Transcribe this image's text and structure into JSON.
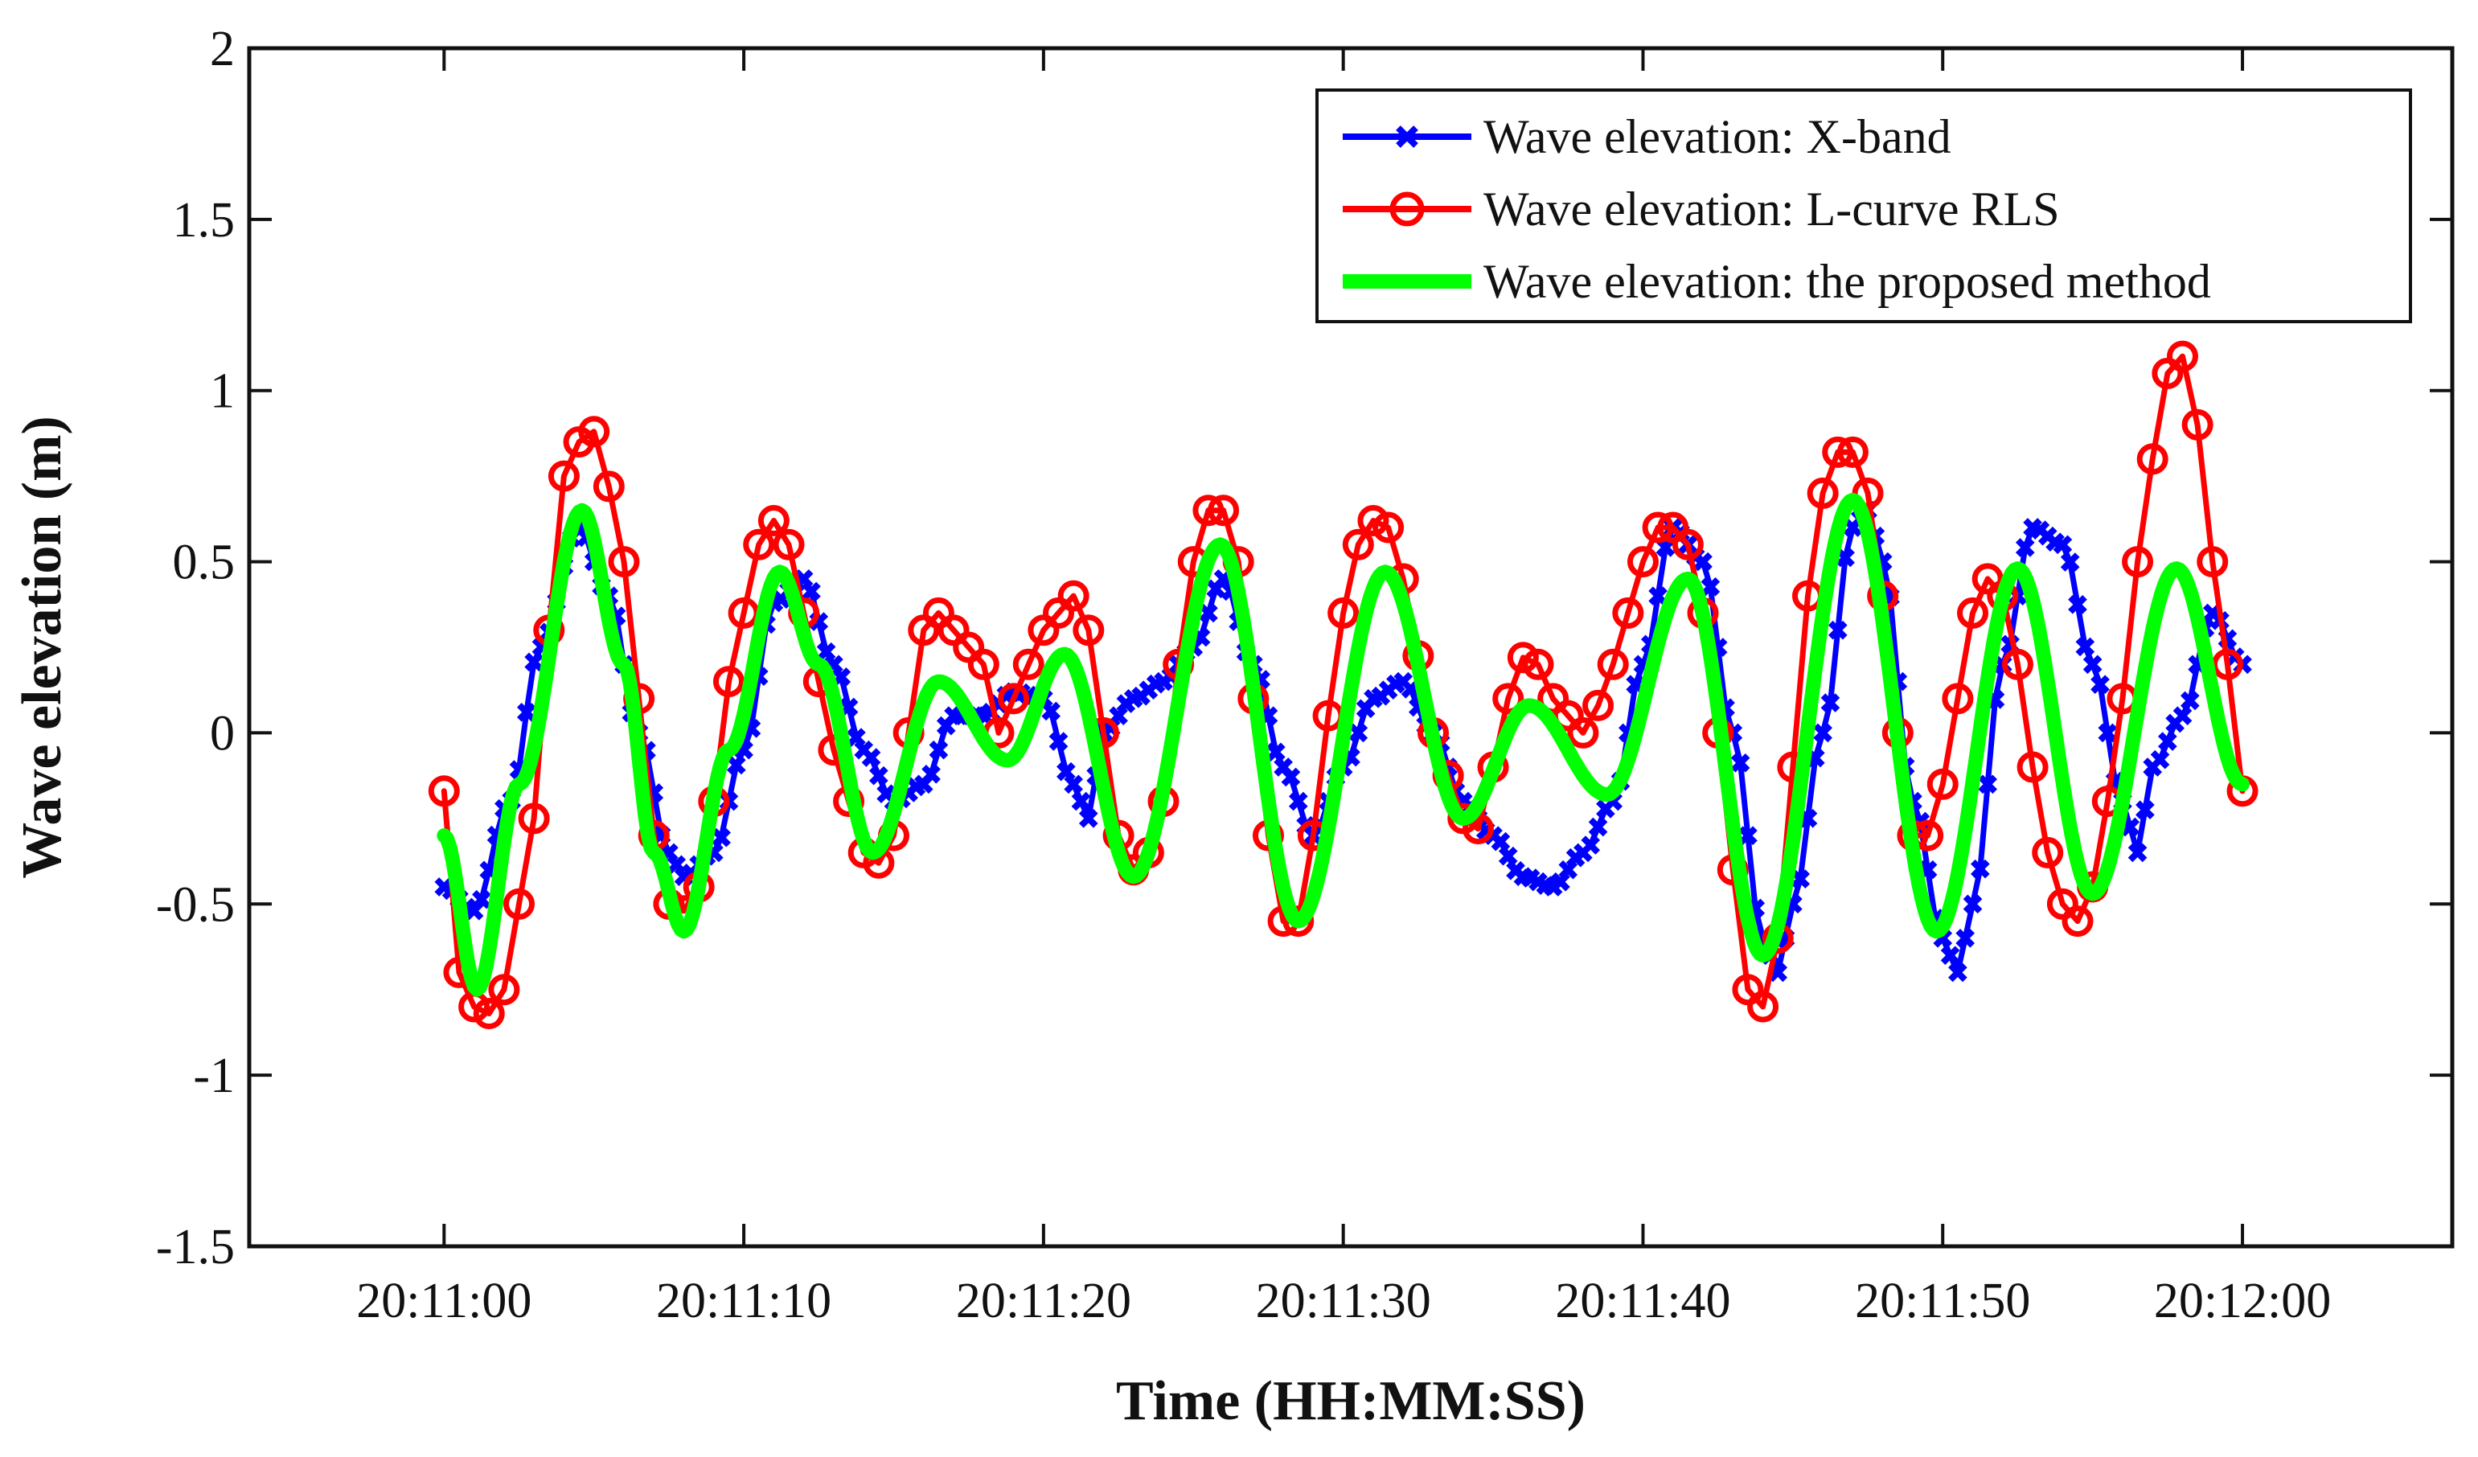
{
  "chart_data": {
    "type": "line",
    "title": "",
    "xlabel": "Time (HH:MM:SS)",
    "ylabel": "Wave elevation (m)",
    "x_unit": "seconds after 20:11:00",
    "xlim": [
      -6.5,
      67
    ],
    "ylim": [
      -1.5,
      2
    ],
    "xticks": [
      {
        "value": 0,
        "label": "20:11:00"
      },
      {
        "value": 10,
        "label": "20:11:10"
      },
      {
        "value": 20,
        "label": "20:11:20"
      },
      {
        "value": 30,
        "label": "20:11:30"
      },
      {
        "value": 40,
        "label": "20:11:40"
      },
      {
        "value": 50,
        "label": "20:11:50"
      },
      {
        "value": 60,
        "label": "20:12:00"
      }
    ],
    "yticks": [
      {
        "value": 2,
        "label": "2"
      },
      {
        "value": 1.5,
        "label": "1.5"
      },
      {
        "value": 1,
        "label": "1"
      },
      {
        "value": 0.5,
        "label": "0.5"
      },
      {
        "value": 0,
        "label": "0"
      },
      {
        "value": -0.5,
        "label": "-0.5"
      },
      {
        "value": -1,
        "label": "-1"
      },
      {
        "value": -1.5,
        "label": "-1.5"
      }
    ],
    "grid": false,
    "legend_position": "top-right",
    "series": [
      {
        "name": "Wave elevation: X-band",
        "color": "#0000FF",
        "marker": "x",
        "keypoints": [
          [
            0,
            -0.45
          ],
          [
            1,
            -0.52
          ],
          [
            2.2,
            -0.2
          ],
          [
            3.2,
            0.25
          ],
          [
            4.5,
            0.6
          ],
          [
            5.5,
            0.4
          ],
          [
            6.5,
            0.0
          ],
          [
            7.5,
            -0.35
          ],
          [
            8,
            -0.42
          ],
          [
            9,
            -0.35
          ],
          [
            10,
            -0.05
          ],
          [
            11,
            0.38
          ],
          [
            12,
            0.45
          ],
          [
            13,
            0.2
          ],
          [
            14,
            -0.05
          ],
          [
            15,
            -0.2
          ],
          [
            16,
            -0.15
          ],
          [
            17,
            0.05
          ],
          [
            18,
            0.05
          ],
          [
            19,
            0.12
          ],
          [
            20,
            0.1
          ],
          [
            21,
            -0.15
          ],
          [
            21.5,
            -0.25
          ],
          [
            22,
            0.0
          ],
          [
            23,
            0.1
          ],
          [
            24,
            0.15
          ],
          [
            25,
            0.25
          ],
          [
            26,
            0.45
          ],
          [
            27,
            0.2
          ],
          [
            28,
            -0.1
          ],
          [
            29,
            -0.3
          ],
          [
            30,
            -0.1
          ],
          [
            31,
            0.1
          ],
          [
            32,
            0.15
          ],
          [
            33,
            0.0
          ],
          [
            34,
            -0.2
          ],
          [
            35,
            -0.3
          ],
          [
            36,
            -0.42
          ],
          [
            37,
            -0.45
          ],
          [
            38,
            -0.35
          ],
          [
            39,
            -0.2
          ],
          [
            40,
            0.2
          ],
          [
            41,
            0.6
          ],
          [
            42,
            0.5
          ],
          [
            43,
            0.0
          ],
          [
            44,
            -0.6
          ],
          [
            44.5,
            -0.7
          ],
          [
            45,
            -0.5
          ],
          [
            46,
            0.0
          ],
          [
            47,
            0.6
          ],
          [
            47.5,
            0.65
          ],
          [
            48,
            0.5
          ],
          [
            49,
            -0.2
          ],
          [
            50,
            -0.6
          ],
          [
            50.5,
            -0.7
          ],
          [
            51,
            -0.5
          ],
          [
            52,
            0.2
          ],
          [
            53,
            0.6
          ],
          [
            54,
            0.55
          ],
          [
            55,
            0.2
          ],
          [
            56,
            -0.2
          ],
          [
            56.5,
            -0.35
          ],
          [
            57,
            -0.1
          ],
          [
            58,
            0.05
          ],
          [
            59,
            0.35
          ],
          [
            60,
            0.2
          ]
        ],
        "sample_step_s": 0.25
      },
      {
        "name": "Wave elevation: L-curve RLS",
        "color": "#FF0000",
        "marker": "o",
        "keypoints": [
          [
            0,
            -0.17
          ],
          [
            0.5,
            -0.7
          ],
          [
            1,
            -0.8
          ],
          [
            1.5,
            -0.82
          ],
          [
            2,
            -0.75
          ],
          [
            3,
            -0.25
          ],
          [
            3.5,
            0.3
          ],
          [
            4,
            0.75
          ],
          [
            4.5,
            0.85
          ],
          [
            5,
            0.88
          ],
          [
            5.5,
            0.72
          ],
          [
            6,
            0.5
          ],
          [
            6.5,
            0.1
          ],
          [
            7,
            -0.3
          ],
          [
            7.5,
            -0.5
          ],
          [
            8,
            -0.52
          ],
          [
            8.5,
            -0.45
          ],
          [
            9,
            -0.2
          ],
          [
            9.5,
            0.15
          ],
          [
            10,
            0.35
          ],
          [
            10.5,
            0.55
          ],
          [
            11,
            0.62
          ],
          [
            11.5,
            0.55
          ],
          [
            12,
            0.35
          ],
          [
            13,
            -0.05
          ],
          [
            14,
            -0.35
          ],
          [
            14.5,
            -0.38
          ],
          [
            15,
            -0.3
          ],
          [
            15.5,
            0.0
          ],
          [
            16,
            0.3
          ],
          [
            16.5,
            0.35
          ],
          [
            17,
            0.3
          ],
          [
            18,
            0.2
          ],
          [
            18.5,
            0.0
          ],
          [
            19,
            0.1
          ],
          [
            19.5,
            0.2
          ],
          [
            20,
            0.3
          ],
          [
            20.5,
            0.35
          ],
          [
            21,
            0.4
          ],
          [
            21.5,
            0.3
          ],
          [
            22,
            0.0
          ],
          [
            22.5,
            -0.3
          ],
          [
            23,
            -0.4
          ],
          [
            23.5,
            -0.35
          ],
          [
            24,
            -0.2
          ],
          [
            24.5,
            0.2
          ],
          [
            25,
            0.5
          ],
          [
            25.5,
            0.65
          ],
          [
            26,
            0.65
          ],
          [
            26.5,
            0.5
          ],
          [
            27,
            0.1
          ],
          [
            27.5,
            -0.3
          ],
          [
            28,
            -0.55
          ],
          [
            28.5,
            -0.55
          ],
          [
            29,
            -0.3
          ],
          [
            29.5,
            0.05
          ],
          [
            30,
            0.35
          ],
          [
            30.5,
            0.55
          ],
          [
            31,
            0.62
          ],
          [
            31.5,
            0.6
          ],
          [
            32,
            0.45
          ],
          [
            33,
            0.0
          ],
          [
            34,
            -0.25
          ],
          [
            34.5,
            -0.28
          ],
          [
            35,
            -0.1
          ],
          [
            35.5,
            0.1
          ],
          [
            36,
            0.22
          ],
          [
            36.5,
            0.2
          ],
          [
            37,
            0.1
          ],
          [
            37.5,
            0.05
          ],
          [
            38,
            0.0
          ],
          [
            38.5,
            0.08
          ],
          [
            39,
            0.2
          ],
          [
            39.5,
            0.35
          ],
          [
            40,
            0.5
          ],
          [
            40.5,
            0.6
          ],
          [
            41,
            0.6
          ],
          [
            41.5,
            0.55
          ],
          [
            42,
            0.35
          ],
          [
            42.5,
            0.0
          ],
          [
            43,
            -0.4
          ],
          [
            43.5,
            -0.75
          ],
          [
            44,
            -0.8
          ],
          [
            44.5,
            -0.6
          ],
          [
            45,
            -0.1
          ],
          [
            45.5,
            0.4
          ],
          [
            46,
            0.7
          ],
          [
            46.5,
            0.82
          ],
          [
            47,
            0.82
          ],
          [
            47.5,
            0.7
          ],
          [
            48,
            0.4
          ],
          [
            48.5,
            0.0
          ],
          [
            49,
            -0.3
          ],
          [
            49.5,
            -0.3
          ],
          [
            50,
            -0.15
          ],
          [
            50.5,
            0.1
          ],
          [
            51,
            0.35
          ],
          [
            51.5,
            0.45
          ],
          [
            52,
            0.4
          ],
          [
            52.5,
            0.2
          ],
          [
            53,
            -0.1
          ],
          [
            53.5,
            -0.35
          ],
          [
            54,
            -0.5
          ],
          [
            54.5,
            -0.55
          ],
          [
            55,
            -0.45
          ],
          [
            55.5,
            -0.2
          ],
          [
            56,
            0.1
          ],
          [
            56.5,
            0.5
          ],
          [
            57,
            0.8
          ],
          [
            57.5,
            1.05
          ],
          [
            58,
            1.1
          ],
          [
            58.5,
            0.9
          ],
          [
            59,
            0.5
          ],
          [
            59.5,
            0.2
          ],
          [
            60,
            -0.17
          ]
        ],
        "sample_step_s": 0.5
      },
      {
        "name": "Wave elevation: the proposed method",
        "color": "#00FF00",
        "marker": "none",
        "keypoints": [
          [
            0,
            -0.3
          ],
          [
            1.1,
            -0.75
          ],
          [
            2.5,
            -0.15
          ],
          [
            4.6,
            0.65
          ],
          [
            6,
            0.2
          ],
          [
            7,
            -0.35
          ],
          [
            8,
            -0.58
          ],
          [
            9.5,
            -0.05
          ],
          [
            11.2,
            0.47
          ],
          [
            12.5,
            0.2
          ],
          [
            14.3,
            -0.35
          ],
          [
            16.5,
            0.15
          ],
          [
            18.8,
            -0.08
          ],
          [
            20.7,
            0.23
          ],
          [
            23,
            -0.42
          ],
          [
            25.9,
            0.55
          ],
          [
            28.5,
            -0.55
          ],
          [
            31.4,
            0.47
          ],
          [
            34,
            -0.25
          ],
          [
            36.2,
            0.08
          ],
          [
            38.8,
            -0.18
          ],
          [
            41.5,
            0.45
          ],
          [
            44,
            -0.65
          ],
          [
            47,
            0.68
          ],
          [
            49.8,
            -0.58
          ],
          [
            52.5,
            0.48
          ],
          [
            55,
            -0.47
          ],
          [
            57.8,
            0.48
          ],
          [
            60,
            -0.15
          ]
        ],
        "sample_step_s": 0.1
      }
    ]
  }
}
